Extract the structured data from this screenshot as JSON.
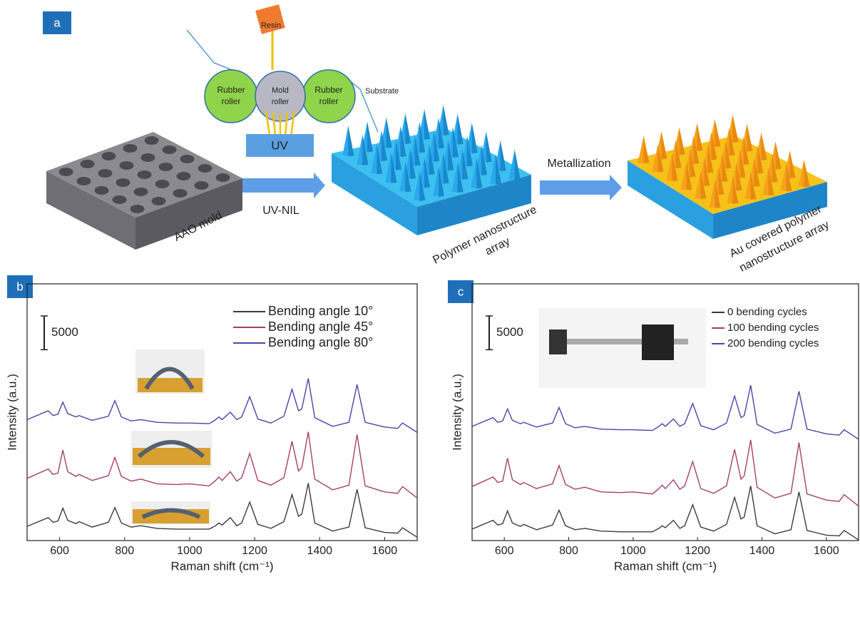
{
  "panel_labels": [
    "a",
    "b",
    "c"
  ],
  "diagram": {
    "resin": "Resin",
    "left_roller": [
      "Rubber",
      "roller"
    ],
    "mold_roller": [
      "Mold",
      "roller"
    ],
    "right_roller": [
      "Rubber",
      "roller"
    ],
    "substrate": "Substrate",
    "uv": "UV",
    "uv_nil": "UV-NIL",
    "metallization": "Metallization",
    "aao_mold": "AAO mold",
    "polymer_array": [
      "Polymer nanostructure",
      "array"
    ],
    "au_array": [
      "Au covered polymer",
      "nanostructure array"
    ]
  },
  "chart_data": [
    {
      "type": "line",
      "x_label": "Raman shift (cm⁻¹)",
      "y_label": "Intensity (a.u.)",
      "scale_bar": 5000,
      "xlim": [
        500,
        1700
      ],
      "xticks": [
        600,
        800,
        1000,
        1200,
        1400,
        1600
      ],
      "ylim": [
        0,
        38000
      ],
      "x": [
        500,
        565,
        580,
        595,
        610,
        625,
        650,
        660,
        700,
        750,
        770,
        790,
        820,
        850,
        900,
        960,
        1000,
        1060,
        1080,
        1090,
        1100,
        1125,
        1145,
        1160,
        1185,
        1210,
        1250,
        1290,
        1315,
        1335,
        1345,
        1365,
        1385,
        1440,
        1490,
        1515,
        1540,
        1600,
        1640,
        1655,
        1700
      ],
      "series": [
        {
          "name": "Bending angle 10°",
          "color": "#3a3a46",
          "values": [
            2100,
            3400,
            2700,
            2900,
            4800,
            3000,
            2500,
            2800,
            2000,
            2700,
            4900,
            2600,
            2000,
            2200,
            1800,
            1700,
            1700,
            1700,
            2200,
            2600,
            2300,
            3400,
            2200,
            2600,
            5700,
            2400,
            1800,
            2800,
            6800,
            3600,
            3900,
            8500,
            2600,
            1400,
            2000,
            7600,
            1900,
            1200,
            1100,
            1900,
            500
          ]
        },
        {
          "name": "Bending angle 45°",
          "color": "#a3415e",
          "values": [
            9200,
            10600,
            9800,
            10000,
            13400,
            10200,
            9500,
            9800,
            8900,
            9600,
            12300,
            9500,
            8800,
            9100,
            8400,
            8300,
            8400,
            8100,
            8900,
            9400,
            8900,
            10200,
            8800,
            9300,
            12900,
            8900,
            8200,
            9300,
            14700,
            10300,
            10800,
            16100,
            9100,
            7500,
            8200,
            15700,
            8100,
            7200,
            7000,
            8000,
            6300
          ]
        },
        {
          "name": "Bending angle 80°",
          "color": "#4646a6",
          "values": [
            17900,
            19200,
            18500,
            18700,
            20500,
            18800,
            18300,
            18500,
            17800,
            18400,
            20700,
            18300,
            17700,
            17900,
            17500,
            17400,
            17400,
            17300,
            17900,
            18300,
            17900,
            19000,
            17900,
            18300,
            21300,
            18000,
            17400,
            18400,
            22400,
            19200,
            19500,
            24000,
            18200,
            16900,
            17500,
            23100,
            17500,
            16800,
            16600,
            17400,
            16000
          ]
        }
      ]
    },
    {
      "type": "line",
      "x_label": "Raman shift (cm⁻¹)",
      "y_label": "Intensity (a.u.)",
      "scale_bar": 5000,
      "xlim": [
        500,
        1700
      ],
      "xticks": [
        600,
        800,
        1000,
        1200,
        1400,
        1600
      ],
      "ylim": [
        0,
        38000
      ],
      "x": [
        500,
        565,
        580,
        595,
        610,
        625,
        650,
        660,
        700,
        750,
        770,
        790,
        820,
        850,
        900,
        960,
        1000,
        1060,
        1080,
        1090,
        1100,
        1125,
        1145,
        1160,
        1185,
        1210,
        1250,
        1290,
        1315,
        1335,
        1345,
        1365,
        1385,
        1440,
        1490,
        1515,
        1540,
        1600,
        1640,
        1655,
        1700
      ],
      "series": [
        {
          "name": "0 bending cycles",
          "color": "#3a3a46",
          "values": [
            1700,
            3000,
            2300,
            2500,
            4400,
            2600,
            2100,
            2400,
            1600,
            2300,
            4500,
            2200,
            1600,
            1800,
            1400,
            1300,
            1300,
            1300,
            1800,
            2200,
            1900,
            3000,
            1800,
            2200,
            5300,
            2000,
            1400,
            2400,
            6400,
            3200,
            3500,
            8100,
            2200,
            1000,
            1600,
            7200,
            1500,
            800,
            700,
            1500,
            100
          ]
        },
        {
          "name": "100 bending cycles",
          "color": "#a3415e",
          "values": [
            8000,
            9400,
            8600,
            8800,
            12200,
            9000,
            8300,
            8600,
            7700,
            8400,
            11100,
            8300,
            7600,
            7900,
            7200,
            7100,
            7200,
            6900,
            7700,
            8200,
            7700,
            9000,
            7600,
            8100,
            11700,
            7700,
            7000,
            8100,
            13500,
            9100,
            9600,
            14900,
            7900,
            6300,
            7000,
            14500,
            6900,
            6000,
            5800,
            6800,
            5100
          ]
        },
        {
          "name": "200 bending cycles",
          "color": "#4646a6",
          "values": [
            16900,
            18200,
            17500,
            17700,
            19500,
            17800,
            17300,
            17500,
            16800,
            17400,
            19700,
            17300,
            16700,
            16900,
            16500,
            16400,
            16400,
            16300,
            16900,
            17300,
            16900,
            18000,
            16900,
            17300,
            20300,
            17000,
            16400,
            17400,
            21400,
            18200,
            18500,
            23000,
            17200,
            15900,
            16500,
            22100,
            16500,
            15800,
            15600,
            16400,
            15000
          ]
        }
      ]
    }
  ]
}
